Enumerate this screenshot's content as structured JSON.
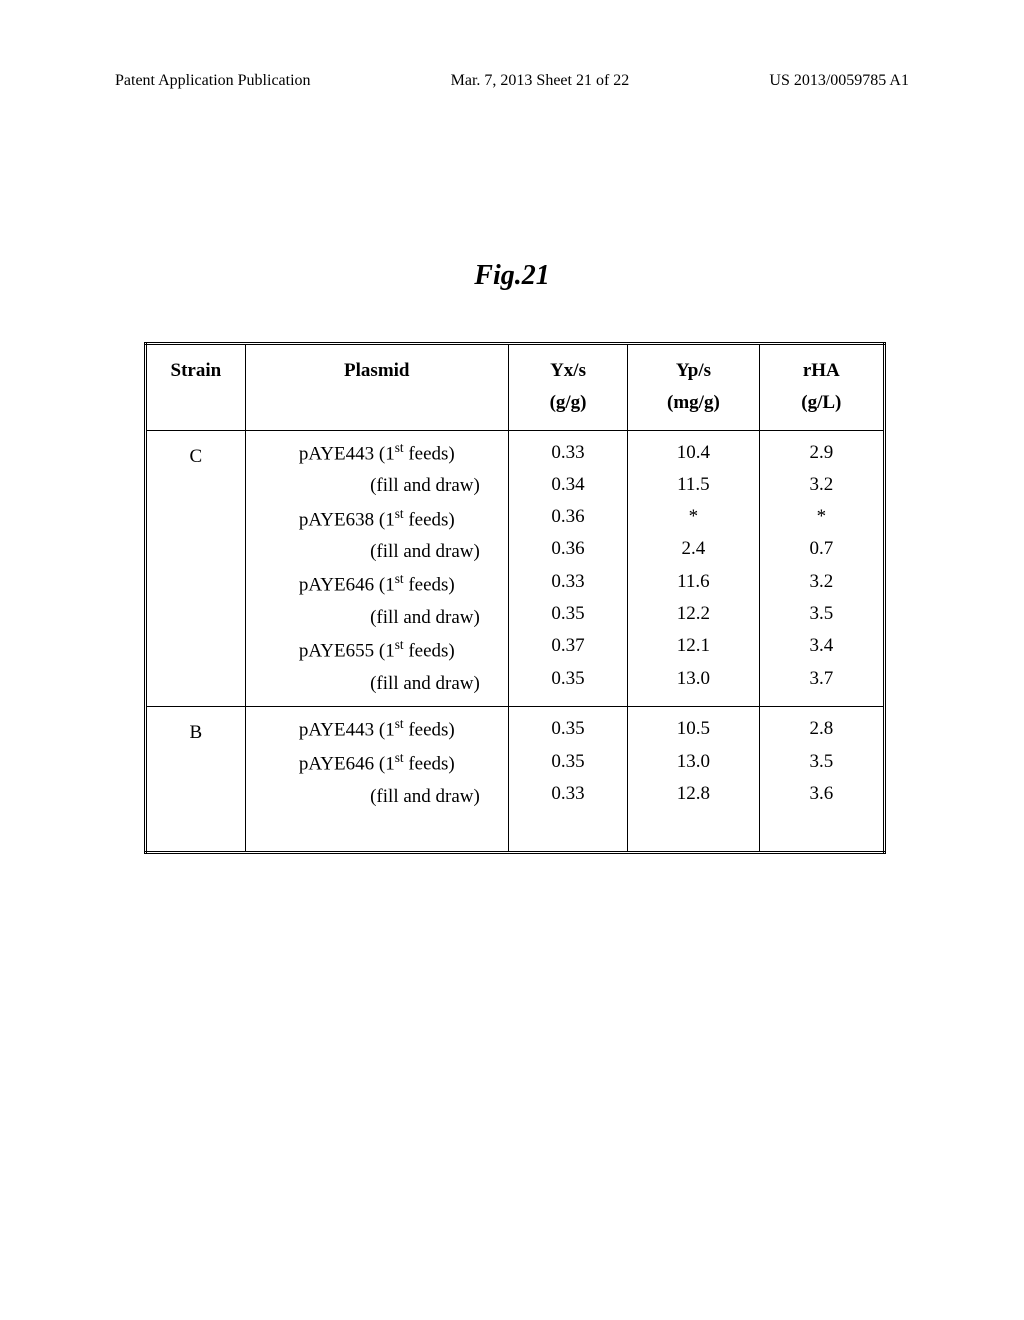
{
  "header": {
    "left": "Patent Application Publication",
    "center": "Mar. 7, 2013  Sheet 21 of 22",
    "right": "US 2013/0059785 A1"
  },
  "figure_title": "Fig.21",
  "table": {
    "columns": {
      "strain": {
        "label": "Strain",
        "unit": ""
      },
      "plasmid": {
        "label": "Plasmid",
        "unit": ""
      },
      "yxs": {
        "label": "Yx/s",
        "unit": "(g/g)"
      },
      "yps": {
        "label": "Yp/s",
        "unit": "(mg/g)"
      },
      "rha": {
        "label": "rHA",
        "unit": "(g/L)"
      }
    },
    "sections": [
      {
        "strain": "C",
        "plasmid_lines": [
          {
            "text": "pAYE443 (1___st___ feeds)",
            "align": "center"
          },
          {
            "text": "(fill and draw)",
            "align": "right"
          },
          {
            "text": "pAYE638 (1___st___ feeds)",
            "align": "center"
          },
          {
            "text": "(fill and draw)",
            "align": "right"
          },
          {
            "text": "pAYE646 (1___st___ feeds)",
            "align": "center"
          },
          {
            "text": "(fill and draw)",
            "align": "right"
          },
          {
            "text": "pAYE655 (1___st___ feeds)",
            "align": "center"
          },
          {
            "text": "(fill and draw)",
            "align": "right"
          }
        ],
        "yxs": [
          "0.33",
          "0.34",
          "0.36",
          "0.36",
          "0.33",
          "0.35",
          "0.37",
          "0.35"
        ],
        "yps": [
          "10.4",
          "11.5",
          "*",
          "2.4",
          "11.6",
          "12.2",
          "12.1",
          "13.0"
        ],
        "rha": [
          "2.9",
          "3.2",
          "*",
          "0.7",
          "3.2",
          "3.5",
          "3.4",
          "3.7"
        ]
      },
      {
        "strain": "B",
        "plasmid_lines": [
          {
            "text": "pAYE443 (1___st___ feeds)",
            "align": "center"
          },
          {
            "text": "pAYE646 (1___st___ feeds)",
            "align": "center"
          },
          {
            "text": "(fill and draw)",
            "align": "right"
          },
          {
            "text": "",
            "align": "center"
          }
        ],
        "yxs": [
          "0.35",
          "0.35",
          "0.33",
          ""
        ],
        "yps": [
          "10.5",
          "13.0",
          "12.8",
          ""
        ],
        "rha": [
          "2.8",
          "3.5",
          "3.6",
          ""
        ]
      }
    ]
  }
}
